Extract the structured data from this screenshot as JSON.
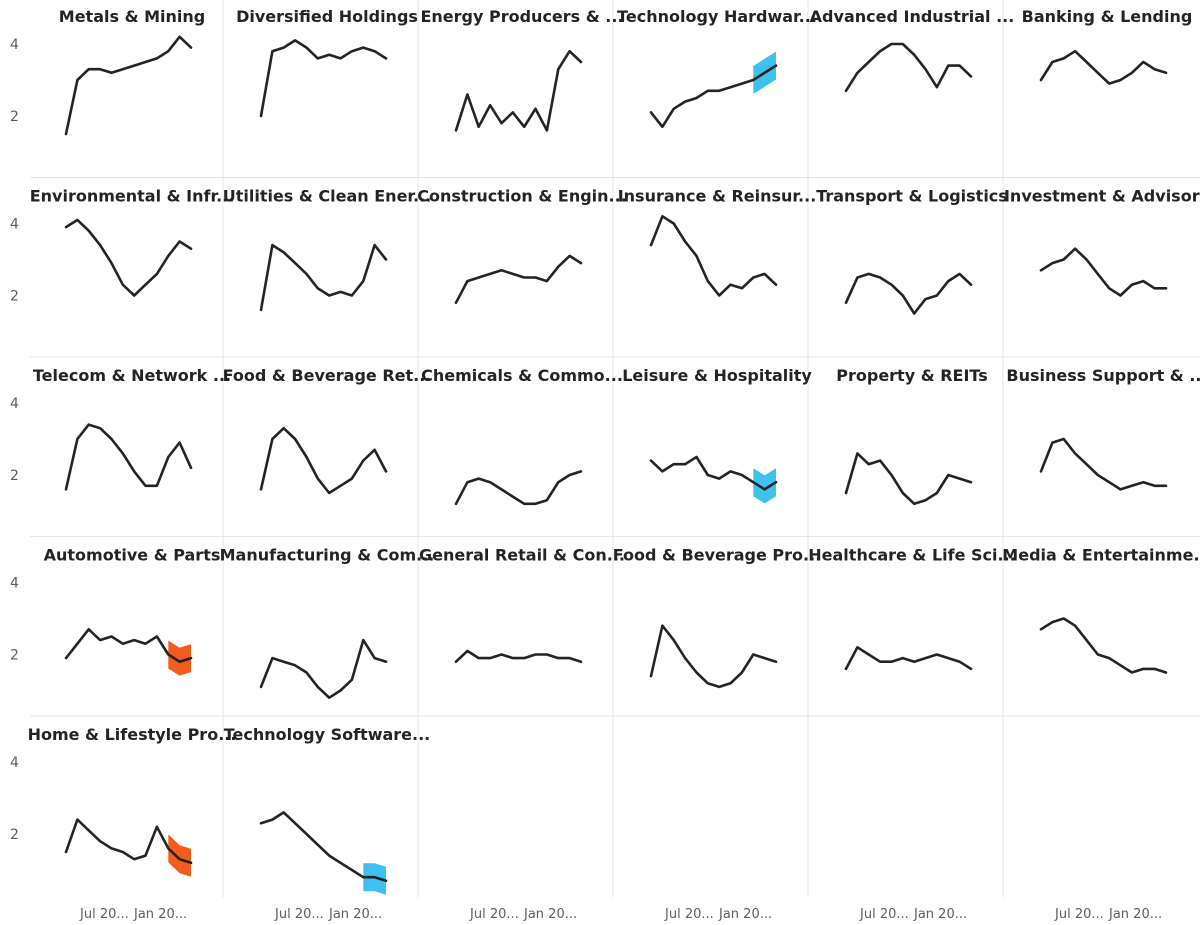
{
  "chart_data": {
    "type": "line",
    "layout": "small-multiples",
    "columns": 6,
    "y_ticks": [
      "4",
      "2"
    ],
    "x_ticks": [
      "Jul 20...",
      "Jan 20..."
    ],
    "ylim": [
      0,
      5
    ],
    "colors": {
      "line": "#252423",
      "up": "#3ec1ee",
      "down": "#f25c1c"
    },
    "panels": [
      {
        "title": "Metals & Mining",
        "values": [
          1.5,
          3.0,
          3.3,
          3.3,
          3.2,
          3.3,
          3.4,
          3.5,
          3.6,
          3.8,
          4.2,
          3.9
        ],
        "highlight": "none"
      },
      {
        "title": "Diversified Holdings",
        "values": [
          2.0,
          3.8,
          3.9,
          4.1,
          3.9,
          3.6,
          3.7,
          3.6,
          3.8,
          3.9,
          3.8,
          3.6
        ],
        "highlight": "none"
      },
      {
        "title": "Energy Producers & ...",
        "values": [
          1.6,
          2.6,
          1.7,
          2.3,
          1.8,
          2.1,
          1.7,
          2.2,
          1.6,
          3.3,
          3.8,
          3.5
        ],
        "highlight": "none"
      },
      {
        "title": "Technology Hardwar...",
        "values": [
          2.1,
          1.7,
          2.2,
          2.4,
          2.5,
          2.7,
          2.7,
          2.8,
          2.9,
          3.0,
          3.2,
          3.4
        ],
        "highlight": "up"
      },
      {
        "title": "Advanced Industrial ...",
        "values": [
          2.7,
          3.2,
          3.5,
          3.8,
          4.0,
          4.0,
          3.7,
          3.3,
          2.8,
          3.4,
          3.4,
          3.1
        ],
        "highlight": "none"
      },
      {
        "title": "Banking & Lending",
        "values": [
          3.0,
          3.5,
          3.6,
          3.8,
          3.5,
          3.2,
          2.9,
          3.0,
          3.2,
          3.5,
          3.3,
          3.2
        ],
        "highlight": "none"
      },
      {
        "title": "Environmental & Infr...",
        "values": [
          3.9,
          4.1,
          3.8,
          3.4,
          2.9,
          2.3,
          2.0,
          2.3,
          2.6,
          3.1,
          3.5,
          3.3
        ],
        "highlight": "none"
      },
      {
        "title": "Utilities & Clean Ener...",
        "values": [
          1.6,
          3.4,
          3.2,
          2.9,
          2.6,
          2.2,
          2.0,
          2.1,
          2.0,
          2.4,
          3.4,
          3.0
        ],
        "highlight": "none"
      },
      {
        "title": "Construction & Engin...",
        "values": [
          1.8,
          2.4,
          2.5,
          2.6,
          2.7,
          2.6,
          2.5,
          2.5,
          2.4,
          2.8,
          3.1,
          2.9
        ],
        "highlight": "none"
      },
      {
        "title": "Insurance & Reinsur...",
        "values": [
          3.4,
          4.2,
          4.0,
          3.5,
          3.1,
          2.4,
          2.0,
          2.3,
          2.2,
          2.5,
          2.6,
          2.3
        ],
        "highlight": "none"
      },
      {
        "title": "Transport & Logistics",
        "values": [
          1.8,
          2.5,
          2.6,
          2.5,
          2.3,
          2.0,
          1.5,
          1.9,
          2.0,
          2.4,
          2.6,
          2.3
        ],
        "highlight": "none"
      },
      {
        "title": "Investment & Advisory",
        "values": [
          2.7,
          2.9,
          3.0,
          3.3,
          3.0,
          2.6,
          2.2,
          2.0,
          2.3,
          2.4,
          2.2,
          2.2
        ],
        "highlight": "none"
      },
      {
        "title": "Telecom & Network ...",
        "values": [
          1.6,
          3.0,
          3.4,
          3.3,
          3.0,
          2.6,
          2.1,
          1.7,
          1.7,
          2.5,
          2.9,
          2.2
        ],
        "highlight": "none"
      },
      {
        "title": "Food & Beverage Ret...",
        "values": [
          1.6,
          3.0,
          3.3,
          3.0,
          2.5,
          1.9,
          1.5,
          1.7,
          1.9,
          2.4,
          2.7,
          2.1
        ],
        "highlight": "none"
      },
      {
        "title": "Chemicals & Commo...",
        "values": [
          1.2,
          1.8,
          1.9,
          1.8,
          1.6,
          1.4,
          1.2,
          1.2,
          1.3,
          1.8,
          2.0,
          2.1
        ],
        "highlight": "none"
      },
      {
        "title": "Leisure & Hospitality",
        "values": [
          2.4,
          2.1,
          2.3,
          2.3,
          2.5,
          2.0,
          1.9,
          2.1,
          2.0,
          1.8,
          1.6,
          1.8
        ],
        "highlight": "up"
      },
      {
        "title": "Property & REITs",
        "values": [
          1.5,
          2.6,
          2.3,
          2.4,
          2.0,
          1.5,
          1.2,
          1.3,
          1.5,
          2.0,
          1.9,
          1.8
        ],
        "highlight": "none"
      },
      {
        "title": "Business Support & ...",
        "values": [
          2.1,
          2.9,
          3.0,
          2.6,
          2.3,
          2.0,
          1.8,
          1.6,
          1.7,
          1.8,
          1.7,
          1.7
        ],
        "highlight": "none"
      },
      {
        "title": "Automotive & Parts",
        "values": [
          1.9,
          2.3,
          2.7,
          2.4,
          2.5,
          2.3,
          2.4,
          2.3,
          2.5,
          2.0,
          1.8,
          1.9
        ],
        "highlight": "down"
      },
      {
        "title": "Manufacturing & Com...",
        "values": [
          1.1,
          1.9,
          1.8,
          1.7,
          1.5,
          1.1,
          0.8,
          1.0,
          1.3,
          2.4,
          1.9,
          1.8
        ],
        "highlight": "none"
      },
      {
        "title": "General Retail & Con...",
        "values": [
          1.8,
          2.1,
          1.9,
          1.9,
          2.0,
          1.9,
          1.9,
          2.0,
          2.0,
          1.9,
          1.9,
          1.8
        ],
        "highlight": "none"
      },
      {
        "title": "Food & Beverage Pro...",
        "values": [
          1.4,
          2.8,
          2.4,
          1.9,
          1.5,
          1.2,
          1.1,
          1.2,
          1.5,
          2.0,
          1.9,
          1.8
        ],
        "highlight": "none"
      },
      {
        "title": "Healthcare & Life Sci...",
        "values": [
          1.6,
          2.2,
          2.0,
          1.8,
          1.8,
          1.9,
          1.8,
          1.9,
          2.0,
          1.9,
          1.8,
          1.6
        ],
        "highlight": "none"
      },
      {
        "title": "Media & Entertainme...",
        "values": [
          2.7,
          2.9,
          3.0,
          2.8,
          2.4,
          2.0,
          1.9,
          1.7,
          1.5,
          1.6,
          1.6,
          1.5
        ],
        "highlight": "none"
      },
      {
        "title": "Home & Lifestyle Pro...",
        "values": [
          1.5,
          2.4,
          2.1,
          1.8,
          1.6,
          1.5,
          1.3,
          1.4,
          2.2,
          1.6,
          1.3,
          1.2
        ],
        "highlight": "down"
      },
      {
        "title": "Technology Software...",
        "values": [
          2.3,
          2.4,
          2.6,
          2.3,
          2.0,
          1.7,
          1.4,
          1.2,
          1.0,
          0.8,
          0.8,
          0.7
        ],
        "highlight": "up"
      }
    ]
  }
}
